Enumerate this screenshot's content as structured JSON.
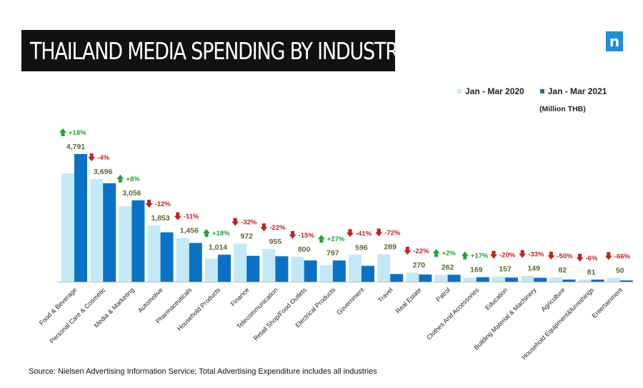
{
  "header": {
    "title": "THAILAND  MEDIA SPENDING BY INDUSTRY",
    "logo_letter": "n"
  },
  "legend": {
    "series_2020": "Jan - Mar 2020",
    "series_2021": "Jan - Mar 2021",
    "unit": "(Million THB)"
  },
  "colors": {
    "series_2020": "#c3e9f7",
    "series_2021": "#0a72c6",
    "increase": "#1fa33a",
    "decrease": "#c71f1f",
    "value_label": "#5b6b2f"
  },
  "footer": {
    "source": "Source: Nielsen  Advertising Information Service; Total Advertising Expenditure includes all industries"
  },
  "chart_data": {
    "type": "bar",
    "categories": [
      "Food & Beverage",
      "Personal Care & Cosmetic",
      "Media & Marketing",
      "Automotive",
      "Pharmaceuticals",
      "Household Products",
      "Finance",
      "Telecommunication",
      "Retail Shop/Food Outlets",
      "Electrical Products",
      "Government",
      "Travel",
      "Real Estate",
      "Patrol",
      "Clothes And Accessories",
      "Education",
      "Building Material & Machinery",
      "Agriculture",
      "Household Equipment&furnishings",
      "Entertainment"
    ],
    "series": [
      {
        "name": "Jan - Mar 2020",
        "values": [
          4060,
          3850,
          2830,
          2110,
          1640,
          860,
          1430,
          1225,
          940,
          628,
          1010,
          1032,
          347,
          257,
          144,
          196,
          223,
          164,
          86,
          147
        ]
      },
      {
        "name": "Jan - Mar 2021",
        "values": [
          4791,
          3696,
          3056,
          1853,
          1456,
          1014,
          972,
          955,
          800,
          797,
          596,
          289,
          270,
          262,
          169,
          157,
          149,
          82,
          81,
          50
        ]
      }
    ],
    "value_labels": [
      "4,791",
      "3,696",
      "3,056",
      "1,853",
      "1,456",
      "1,014",
      "972",
      "955",
      "800",
      "797",
      "596",
      "289",
      "270",
      "262",
      "169",
      "157",
      "149",
      "82",
      "81",
      "50"
    ],
    "changes": [
      "+18%",
      "-4%",
      "+8%",
      "-12%",
      "-11%",
      "+18%",
      "-32%",
      "-22%",
      "-15%",
      "+27%",
      "-41%",
      "-72%",
      "-22%",
      "+2%",
      "+17%",
      "-20%",
      "-33%",
      "-50%",
      "-6%",
      "-66%"
    ],
    "change_direction": [
      "up",
      "down",
      "up",
      "down",
      "down",
      "up",
      "down",
      "down",
      "down",
      "up",
      "down",
      "down",
      "down",
      "up",
      "up",
      "down",
      "down",
      "down",
      "down",
      "down"
    ],
    "ylim": [
      0,
      4791
    ],
    "grid": false,
    "legend_position": "top-right"
  }
}
